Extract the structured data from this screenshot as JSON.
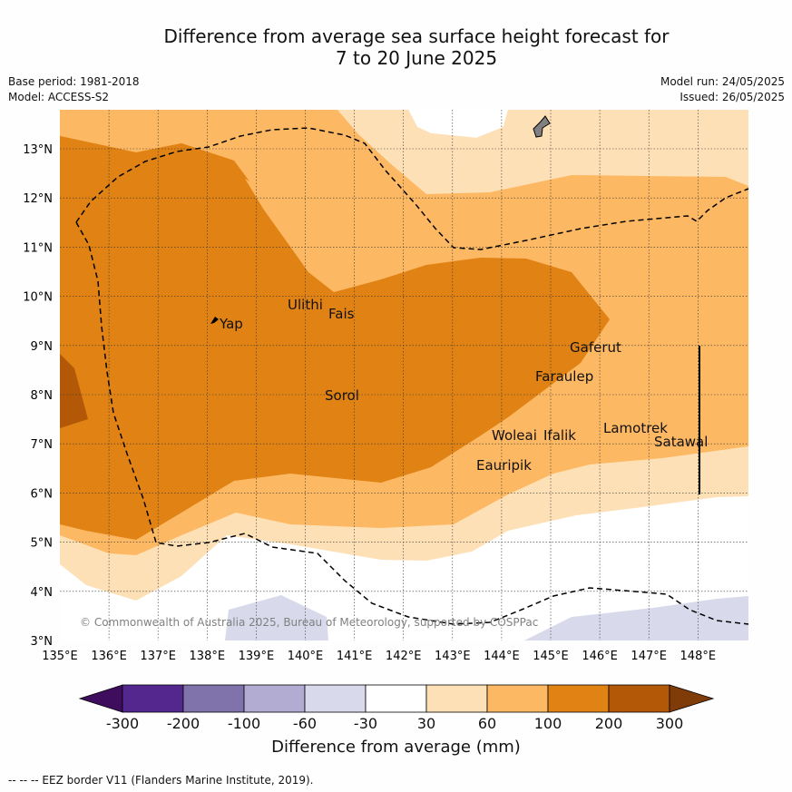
{
  "title": {
    "line1": "Difference from average sea surface height forecast for",
    "line2": "7 to 20 June 2025"
  },
  "meta": {
    "base_period": "Base period: 1981-2018",
    "model": "Model: ACCESS-S2",
    "model_run": "Model run: 24/05/2025",
    "issued": "Issued: 26/05/2025"
  },
  "map": {
    "lon_ticks": [
      "135°E",
      "136°E",
      "137°E",
      "138°E",
      "139°E",
      "140°E",
      "141°E",
      "142°E",
      "143°E",
      "144°E",
      "145°E",
      "146°E",
      "147°E",
      "148°E"
    ],
    "lat_ticks": [
      "3°N",
      "4°N",
      "5°N",
      "6°N",
      "7°N",
      "8°N",
      "9°N",
      "10°N",
      "11°N",
      "12°N",
      "13°N"
    ],
    "places": [
      {
        "name": "Yap"
      },
      {
        "name": "Ulithi"
      },
      {
        "name": "Fais"
      },
      {
        "name": "Sorol"
      },
      {
        "name": "Gaferut"
      },
      {
        "name": "Faraulep"
      },
      {
        "name": "Woleai"
      },
      {
        "name": "Ifalik"
      },
      {
        "name": "Lamotrek"
      },
      {
        "name": "Satawal"
      },
      {
        "name": "Eauripik"
      }
    ],
    "copyright": "© Commonwealth of Australia 2025, Bureau of Meteorology, supported by COSPPac"
  },
  "colorbar": {
    "title": "Difference from average (mm)",
    "labels": [
      "-300",
      "-200",
      "-100",
      "-60",
      "-30",
      "30",
      "60",
      "100",
      "200",
      "300"
    ],
    "colors": [
      "#3f0d5e",
      "#54278f",
      "#8073ac",
      "#b2abd2",
      "#d8daeb",
      "#ffffff",
      "#fee0b6",
      "#fdb863",
      "#e08214",
      "#b35806",
      "#7f3b08"
    ]
  },
  "footnote": "--  --  -- EEZ border V11 (Flanders Marine Institute, 2019)."
}
